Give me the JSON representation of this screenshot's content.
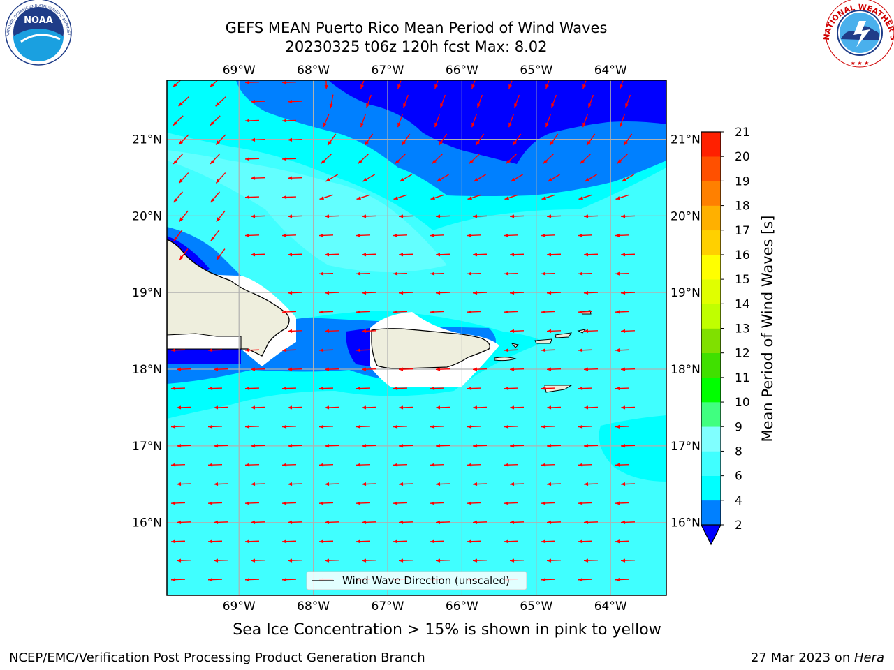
{
  "title": {
    "line1": "GEFS MEAN Puerto Rico Mean Period of Wind Waves",
    "line2": "20230325 t06z 120h fcst   Max: 8.02"
  },
  "logos": {
    "left": {
      "name": "noaa-logo",
      "text": "NOAA",
      "ring_text": "NATIONAL OCEANIC AND ATMOSPHERIC ADMINISTRATION · U.S. DEPARTMENT OF COMMERCE"
    },
    "right": {
      "name": "nws-logo",
      "ring_text": "NATIONAL WEATHER SERVICE"
    }
  },
  "map": {
    "lon_ticks": [
      "69°W",
      "68°W",
      "67°W",
      "66°W",
      "65°W",
      "64°W"
    ],
    "lat_ticks": [
      "21°N",
      "20°N",
      "19°N",
      "18°N",
      "17°N",
      "16°N"
    ],
    "lon_range": [
      -69.97,
      -63.25
    ],
    "lat_range": [
      15.05,
      21.77
    ],
    "grid": true,
    "legend": {
      "label": "Wind Wave Direction (unscaled)",
      "placement": "bottom-center"
    },
    "arrow_color": "#ff0000",
    "land_color": "#eeeedd",
    "variable": "Mean Period of Wind Waves"
  },
  "colorbar": {
    "label": "Mean Period of Wind Waves [s]",
    "levels": [
      2,
      4,
      6,
      8,
      9,
      10,
      11,
      12,
      13,
      14,
      15,
      16,
      17,
      18,
      19,
      20,
      21
    ],
    "tick_labels": [
      "2",
      "4",
      "6",
      "8",
      "9",
      "10",
      "11",
      "12",
      "13",
      "14",
      "15",
      "16",
      "17",
      "18",
      "19",
      "20",
      "21"
    ],
    "colors": [
      "#0080ff",
      "#00ffff",
      "#40ffff",
      "#80ffff",
      "#40ff80",
      "#00ff00",
      "#40e000",
      "#80e000",
      "#c0ff00",
      "#e0ff00",
      "#ffff00",
      "#ffd000",
      "#ffb000",
      "#ff8000",
      "#ff5000",
      "#ff2000"
    ],
    "under_color": "#0000ff",
    "extend": "min"
  },
  "caption": "Sea Ice Concentration > 15% is shown in pink to yellow",
  "footer": {
    "left": "NCEP/EMC/Verification Post Processing Product Generation Branch",
    "right_date": "27 Mar 2023 on ",
    "right_host": "Hera"
  }
}
